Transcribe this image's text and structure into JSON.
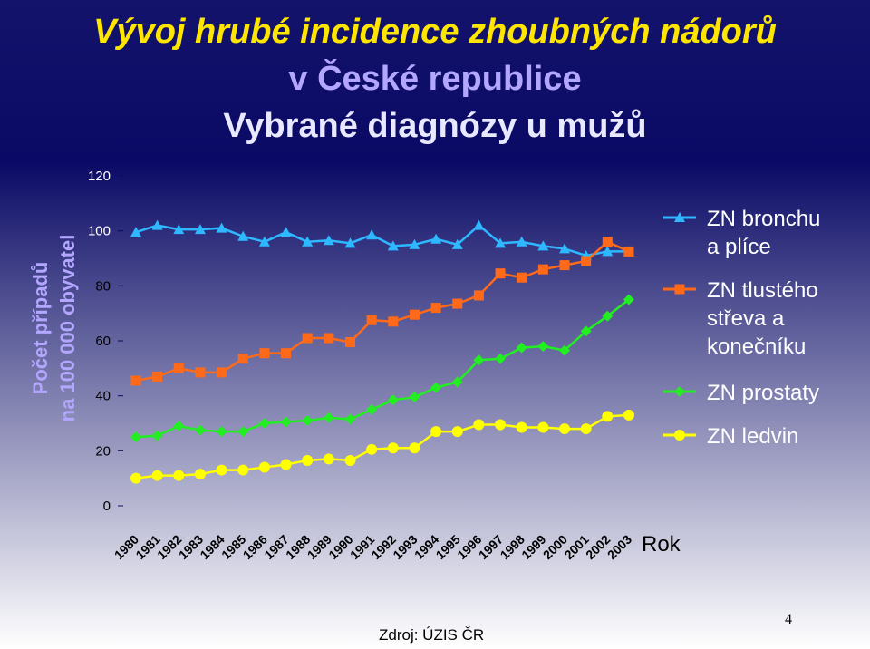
{
  "title": {
    "line1": "Vývoj hrubé incidence zhoubných nádorů",
    "line2": "v České republice",
    "line3": "Vybrané diagnózy u mužů"
  },
  "source": "Zdroj: ÚZIS ČR",
  "page_number": "4",
  "chart_data": {
    "type": "line",
    "ylabel_lines": [
      "Počet případů",
      "na 100 000 obyvatel"
    ],
    "xlabel": "Rok",
    "ylim": [
      0,
      120
    ],
    "yticks": [
      0,
      20,
      40,
      60,
      80,
      100,
      120
    ],
    "grid": false,
    "legend_position": "right",
    "categories": [
      "1980",
      "1981",
      "1982",
      "1983",
      "1984",
      "1985",
      "1986",
      "1987",
      "1988",
      "1989",
      "1990",
      "1991",
      "1992",
      "1993",
      "1994",
      "1995",
      "1996",
      "1997",
      "1998",
      "1999",
      "2000",
      "2001",
      "2002",
      "2003"
    ],
    "series": [
      {
        "name": "ZN bronchu a plíce",
        "legend_lines": [
          "ZN bronchu",
          "a plíce"
        ],
        "color": "#2eb8ff",
        "marker": "triangle",
        "values": [
          99.5,
          102,
          100.5,
          100.5,
          101,
          98,
          96,
          99.5,
          96,
          96.5,
          95.5,
          98.5,
          94.5,
          95,
          97,
          95,
          102,
          95.5,
          96,
          94.5,
          93.5,
          91,
          92.5,
          92.5
        ]
      },
      {
        "name": "ZN tlustého střeva a konečníku",
        "legend_lines": [
          "ZN tlustého",
          "střeva a",
          "konečníku"
        ],
        "color": "#ff6a1a",
        "marker": "square",
        "values": [
          45.5,
          47,
          50,
          48.5,
          48.5,
          53.5,
          55.5,
          55.5,
          61,
          61,
          59.5,
          67.5,
          67,
          69.5,
          72,
          73.5,
          76.5,
          84.5,
          83,
          86,
          87.5,
          89,
          96,
          92.5
        ]
      },
      {
        "name": "ZN prostaty",
        "legend_lines": [
          "ZN prostaty"
        ],
        "color": "#22ee22",
        "marker": "diamond",
        "values": [
          25,
          25.5,
          29,
          27.5,
          27,
          27,
          30,
          30.5,
          31,
          32,
          31.5,
          35,
          38.5,
          39.5,
          43,
          45,
          53,
          53.5,
          57.5,
          58,
          56.5,
          63.5,
          69,
          75
        ]
      },
      {
        "name": "ZN ledvin",
        "legend_lines": [
          "ZN ledvin"
        ],
        "color": "#ffff00",
        "marker": "circle",
        "values": [
          10,
          11,
          11,
          11.5,
          13,
          13,
          14,
          15,
          16.5,
          17,
          16.5,
          20.5,
          21,
          21,
          27,
          27,
          29.5,
          29.5,
          28.5,
          28.5,
          28,
          28,
          32.5,
          33
        ]
      }
    ]
  }
}
